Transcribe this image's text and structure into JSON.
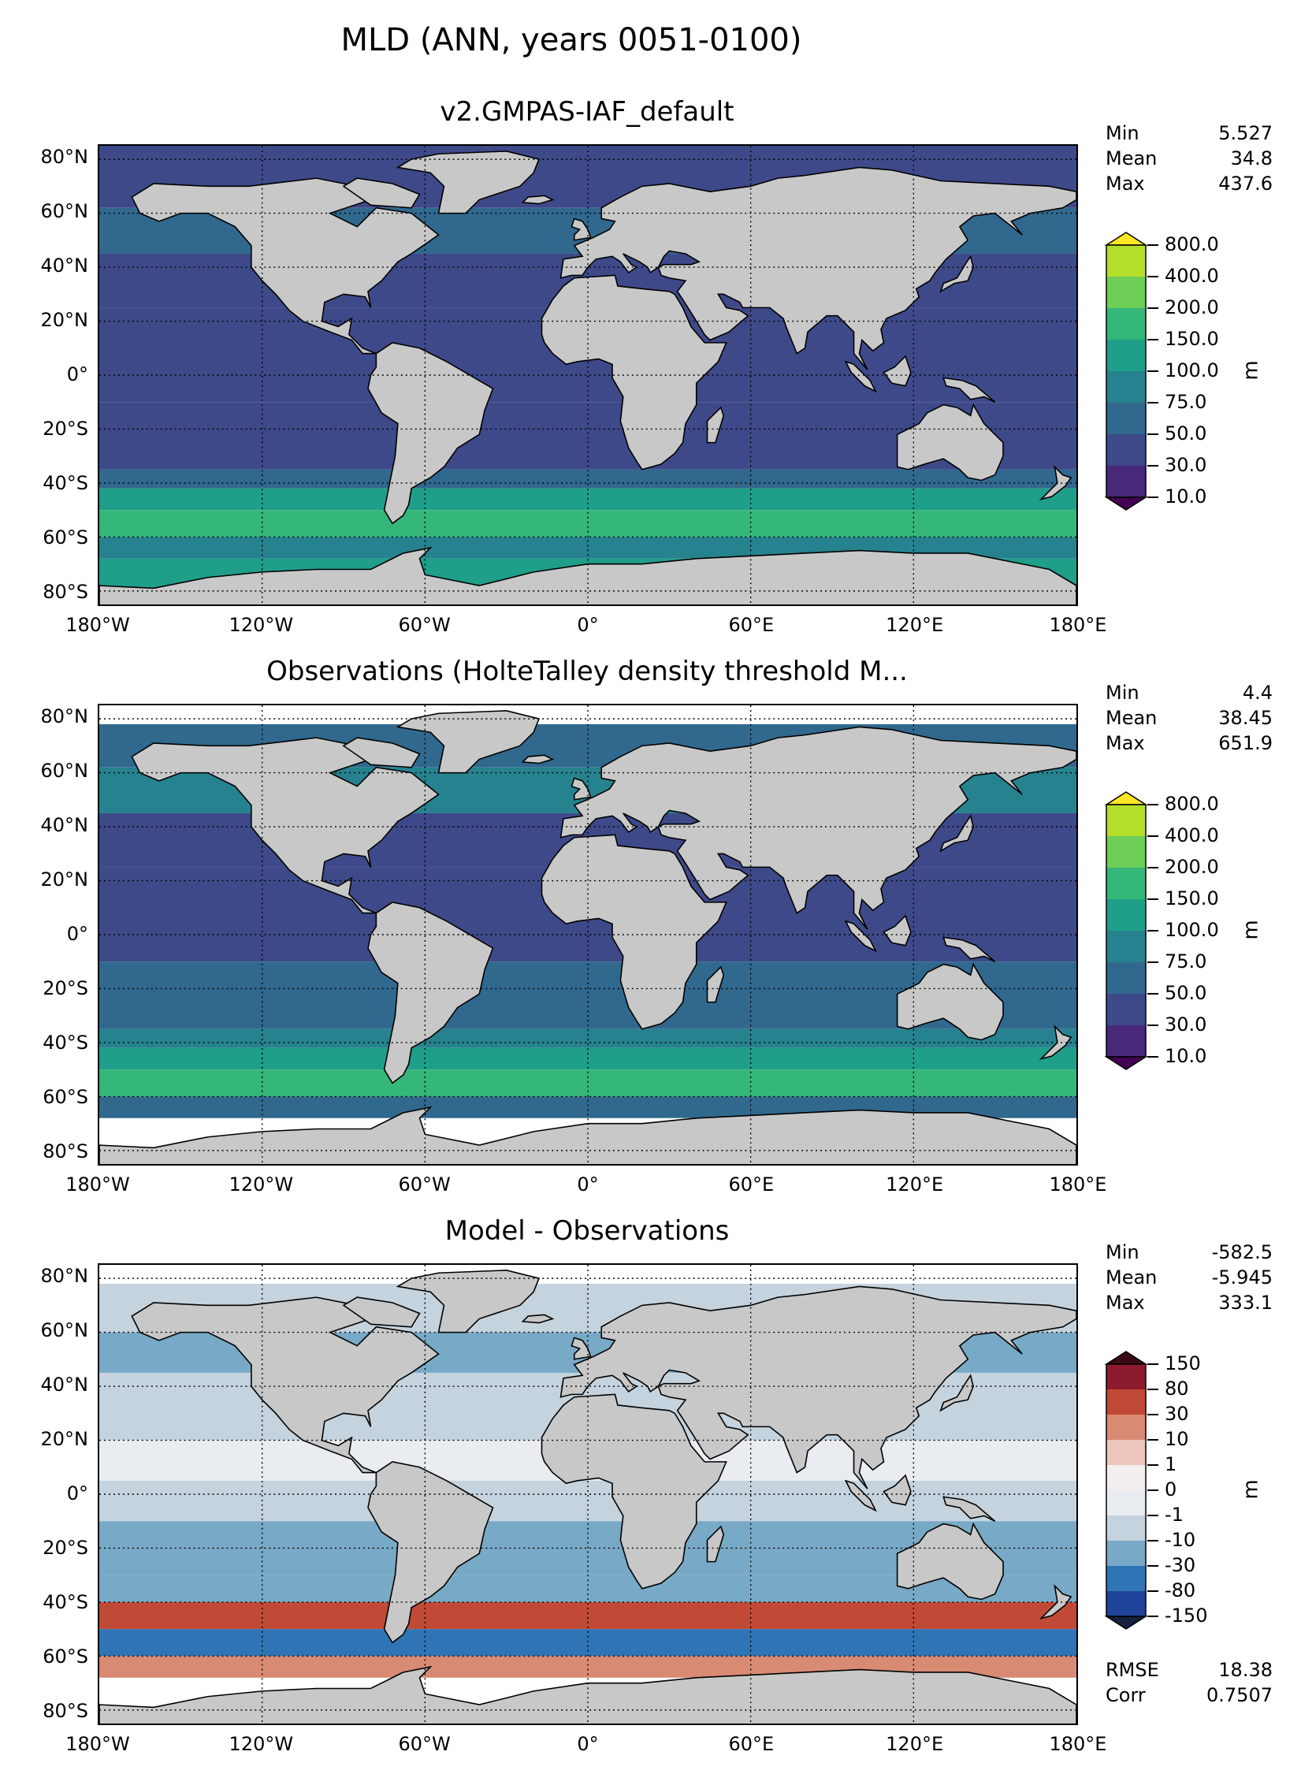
{
  "title": "MLD (ANN, years 0051-0100)",
  "lat_labels": [
    "80°N",
    "60°N",
    "40°N",
    "20°N",
    "0°",
    "20°S",
    "40°S",
    "60°S",
    "80°S"
  ],
  "lon_labels": [
    "180°W",
    "120°W",
    "60°W",
    "0°",
    "60°E",
    "120°E",
    "180°E"
  ],
  "panels": [
    {
      "title": "v2.GMPAS-IAF_default",
      "stats": [
        {
          "label": "Min",
          "value": "5.527"
        },
        {
          "label": "Mean",
          "value": "34.8"
        },
        {
          "label": "Max",
          "value": "437.6"
        }
      ],
      "colorbar": {
        "unit": "m",
        "levels": [
          "800.0",
          "400.0",
          "200.0",
          "150.0",
          "100.0",
          "75.0",
          "50.0",
          "30.0",
          "10.0"
        ],
        "colors": [
          "#fde725",
          "#b5de2b",
          "#6ece58",
          "#35b779",
          "#1f9e89",
          "#26828e",
          "#31688e",
          "#3e4989",
          "#482878",
          "#440154"
        ]
      }
    },
    {
      "title": "Observations (HolteTalley density threshold M...",
      "stats": [
        {
          "label": "Min",
          "value": "4.4"
        },
        {
          "label": "Mean",
          "value": "38.45"
        },
        {
          "label": "Max",
          "value": "651.9"
        }
      ],
      "colorbar": {
        "unit": "m",
        "levels": [
          "800.0",
          "400.0",
          "200.0",
          "150.0",
          "100.0",
          "75.0",
          "50.0",
          "30.0",
          "10.0"
        ],
        "colors": [
          "#fde725",
          "#b5de2b",
          "#6ece58",
          "#35b779",
          "#1f9e89",
          "#26828e",
          "#31688e",
          "#3e4989",
          "#482878",
          "#440154"
        ]
      }
    },
    {
      "title": "Model - Observations",
      "stats": [
        {
          "label": "Min",
          "value": "-582.5"
        },
        {
          "label": "Mean",
          "value": "-5.945"
        },
        {
          "label": "Max",
          "value": "333.1"
        }
      ],
      "extra_stats": [
        {
          "label": "RMSE",
          "value": "18.38"
        },
        {
          "label": "Corr",
          "value": "0.7507"
        }
      ],
      "colorbar": {
        "unit": "m",
        "levels": [
          "150",
          "80",
          "30",
          "10",
          "1",
          "0",
          "-1",
          "-10",
          "-30",
          "-80",
          "-150"
        ],
        "colors": [
          "#3b0a16",
          "#8c1b2d",
          "#c14a37",
          "#d88a73",
          "#ecc6ba",
          "#f3eeee",
          "#e9ecf0",
          "#c4d3de",
          "#78a9c6",
          "#2f75b5",
          "#20449a",
          "#16213f"
        ]
      }
    }
  ],
  "colors": {
    "land": "#c8c8c8",
    "no_data": "#ffffff"
  }
}
